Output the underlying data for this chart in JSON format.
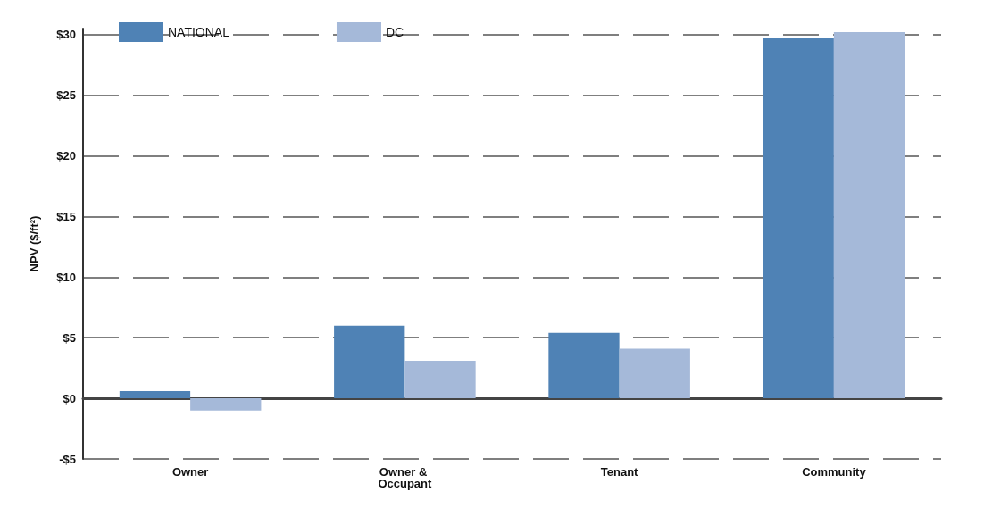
{
  "chart_data": {
    "type": "bar",
    "ylabel": "NPV ($/ft²)",
    "categories": [
      "Owner",
      "Owner & Occupant",
      "Tenant",
      "Community"
    ],
    "series": [
      {
        "name": "NATIONAL",
        "color": "#4f82b5",
        "values": [
          0.6,
          6.0,
          5.4,
          29.7
        ]
      },
      {
        "name": "DC",
        "color": "#a5b9d9",
        "values": [
          -1.0,
          3.1,
          4.1,
          30.2
        ]
      }
    ],
    "ylim": [
      -5,
      30.5
    ],
    "yticks": [
      {
        "value": -5,
        "label": "-$5"
      },
      {
        "value": 0,
        "label": "$0"
      },
      {
        "value": 5,
        "label": "$5"
      },
      {
        "value": 10,
        "label": "$10"
      },
      {
        "value": 15,
        "label": "$15"
      },
      {
        "value": 20,
        "label": "$20"
      },
      {
        "value": 25,
        "label": "$25"
      },
      {
        "value": 30,
        "label": "$30"
      }
    ],
    "grid": "y",
    "legend": "top left"
  }
}
